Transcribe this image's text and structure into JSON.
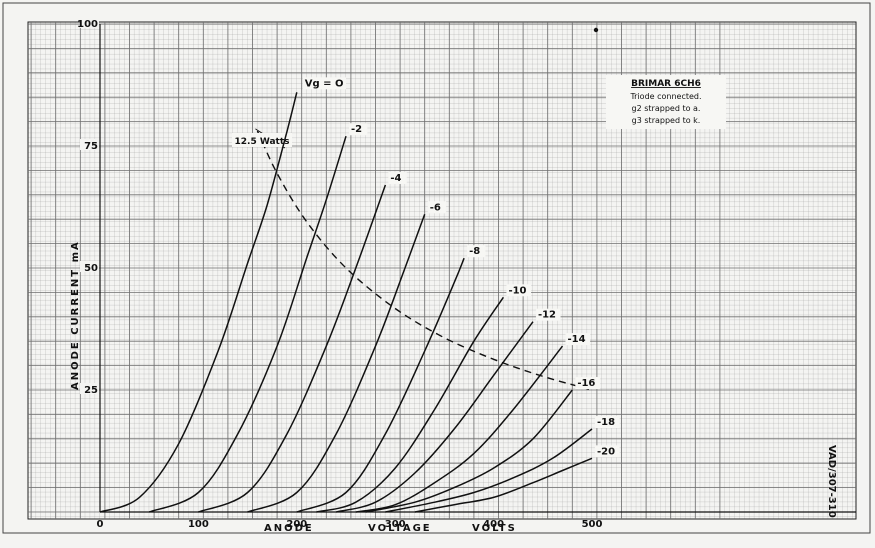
{
  "chart_data": {
    "type": "line",
    "title_block": {
      "title": "BRIMAR 6CH6",
      "lines": [
        "Triode connected.",
        "g2 strapped to a.",
        "g3 strapped to k."
      ]
    },
    "xlabel_parts": [
      "ANODE",
      "VOLTAGE",
      "VOLTS"
    ],
    "ylabel": "ANODE CURRENT mA",
    "x_ticks": [
      "0",
      "100",
      "200",
      "300",
      "400",
      "500"
    ],
    "y_ticks": [
      "25",
      "50",
      "75",
      "100"
    ],
    "xlim": [
      0,
      500
    ],
    "ylim": [
      0,
      100
    ],
    "grid": true,
    "reference": "VAD/307-310",
    "series": [
      {
        "name": "Vg = O",
        "x": [
          0,
          40,
          80,
          120,
          150,
          170,
          190,
          200
        ],
        "y": [
          0,
          3,
          14,
          33,
          51,
          63,
          78,
          86
        ]
      },
      {
        "name": "-2",
        "x": [
          50,
          100,
          140,
          180,
          210,
          230,
          250
        ],
        "y": [
          0,
          4,
          16,
          34,
          52,
          64,
          77
        ]
      },
      {
        "name": "-4",
        "x": [
          100,
          150,
          190,
          230,
          260,
          290
        ],
        "y": [
          0,
          4,
          16,
          34,
          50,
          67
        ]
      },
      {
        "name": "-6",
        "x": [
          150,
          200,
          240,
          280,
          310,
          330
        ],
        "y": [
          0,
          4,
          16,
          34,
          50,
          61
        ]
      },
      {
        "name": "-8",
        "x": [
          200,
          250,
          290,
          330,
          360,
          370
        ],
        "y": [
          0,
          4,
          16,
          33,
          47,
          52
        ]
      },
      {
        "name": "-10",
        "x": [
          220,
          260,
          300,
          340,
          380,
          410
        ],
        "y": [
          0,
          2,
          9,
          21,
          35,
          44
        ]
      },
      {
        "name": "-12",
        "x": [
          240,
          280,
          320,
          360,
          400,
          440
        ],
        "y": [
          0,
          2,
          8,
          17,
          28,
          39
        ]
      },
      {
        "name": "-14",
        "x": [
          260,
          300,
          340,
          380,
          420,
          470
        ],
        "y": [
          0,
          1.5,
          6,
          12,
          21,
          34
        ]
      },
      {
        "name": "-16",
        "x": [
          270,
          320,
          360,
          400,
          440,
          480
        ],
        "y": [
          0,
          2,
          5,
          9,
          15,
          25
        ]
      },
      {
        "name": "-18",
        "x": [
          290,
          340,
          380,
          420,
          460,
          500
        ],
        "y": [
          0,
          2,
          4,
          7,
          11,
          17
        ]
      },
      {
        "name": "-20",
        "x": [
          320,
          360,
          400,
          440,
          470,
          500
        ],
        "y": [
          0,
          1.5,
          3,
          6,
          8.5,
          11
        ]
      }
    ],
    "dissipation_curve": {
      "name": "12.5 Watts",
      "x": [
        160,
        180,
        210,
        250,
        300,
        350,
        400,
        450,
        500
      ],
      "y": [
        78.1,
        69.4,
        59.5,
        50,
        41.7,
        35.7,
        31.3,
        27.8,
        25
      ]
    }
  }
}
